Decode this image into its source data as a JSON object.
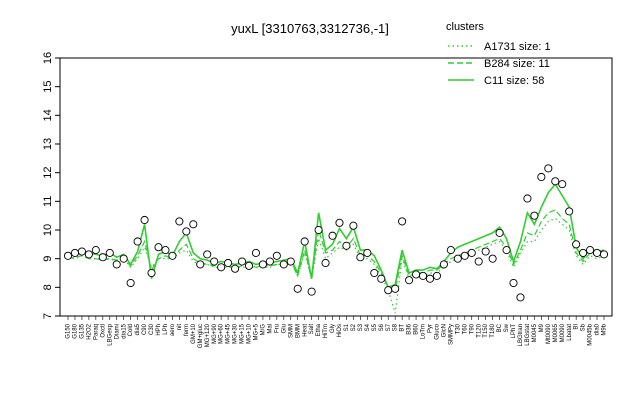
{
  "chart_data": {
    "type": "line",
    "title": "yuxL [3310763,3312736,-1]",
    "xlabel": "",
    "ylabel": "",
    "ylim": [
      7,
      16
    ],
    "yticks": [
      7,
      8,
      9,
      10,
      11,
      12,
      13,
      14,
      15,
      16
    ],
    "grid": false,
    "legend": {
      "title": "clusters",
      "placement": "top-right",
      "entries": [
        {
          "label": "A1731 size: 1",
          "style": "dotted"
        },
        {
          "label": "B284 size: 11",
          "style": "dashed"
        },
        {
          "label": "C11 size: 58",
          "style": "solid"
        }
      ]
    },
    "categories": [
      "G150",
      "G180",
      "G135",
      "H2O2",
      "Paraq",
      "Oxctl",
      "LBGexp",
      "Diami",
      "dia15",
      "Cold",
      "dia5",
      "C90",
      "C30",
      "HPh",
      "LPh",
      "aero",
      "nit",
      "ferm",
      "GM+10",
      "GM+gluc",
      "MG+120",
      "MG+90",
      "MG+60",
      "MG+45",
      "MG+30",
      "MG+15",
      "MG+10",
      "MG+5",
      "M/G",
      "Mal",
      "Fru",
      "Glu",
      "SMM",
      "BMM",
      "Heat",
      "Salt",
      "Etha",
      "HiTm",
      "Gly",
      "HiOs",
      "S1",
      "S2",
      "S3",
      "S4",
      "S5",
      "S6",
      "S7",
      "S8",
      "BT",
      "B36",
      "B60",
      "LoTm",
      "Pyr",
      "Gluco",
      "GlcN",
      "SMMPy",
      "T30",
      "T60",
      "T90",
      "T120",
      "T150",
      "T180",
      "BC",
      "Sw",
      "LPhT",
      "LBGtran",
      "LBGstat",
      "M0045",
      "M9",
      "Mt0090",
      "M0065",
      "M0090",
      "Lbatat",
      "BI",
      "Sb",
      "M0045b",
      "dia0",
      "M9b"
    ],
    "series": [
      {
        "name": "C11 size: 58",
        "style": "solid",
        "values": [
          9.15,
          9.2,
          9.25,
          9.2,
          9.15,
          9.1,
          9.2,
          9.05,
          9.15,
          8.8,
          9.25,
          10.2,
          8.3,
          9.15,
          9.25,
          9.1,
          9.6,
          9.9,
          9.2,
          9.0,
          8.95,
          8.85,
          8.9,
          8.85,
          8.8,
          8.85,
          8.9,
          8.8,
          8.85,
          8.85,
          8.9,
          8.95,
          9.0,
          8.5,
          9.6,
          8.3,
          10.6,
          9.3,
          9.5,
          10.05,
          9.7,
          10.1,
          9.3,
          9.3,
          9.1,
          8.6,
          8.0,
          8.1,
          9.3,
          8.5,
          8.6,
          8.6,
          8.7,
          8.65,
          8.9,
          9.2,
          9.4,
          9.5,
          9.6,
          9.7,
          9.8,
          9.9,
          10.1,
          9.7,
          8.9,
          9.6,
          10.6,
          10.2,
          10.8,
          11.3,
          11.6,
          11.2,
          10.8,
          9.4,
          9.0,
          9.35,
          9.25,
          9.3
        ]
      },
      {
        "name": "B284 size: 11",
        "style": "dashed",
        "values": [
          9.0,
          9.05,
          9.1,
          9.0,
          9.0,
          8.95,
          9.0,
          8.95,
          9.0,
          8.75,
          9.1,
          9.6,
          8.6,
          9.0,
          9.1,
          9.0,
          9.3,
          9.5,
          9.0,
          8.85,
          8.8,
          8.75,
          8.8,
          8.75,
          8.7,
          8.75,
          8.8,
          8.7,
          8.75,
          8.75,
          8.8,
          8.85,
          8.9,
          8.4,
          9.3,
          8.3,
          10.0,
          9.2,
          9.3,
          9.6,
          9.4,
          9.7,
          9.1,
          9.1,
          8.9,
          8.5,
          8.0,
          7.9,
          9.1,
          8.4,
          8.5,
          8.5,
          8.6,
          8.6,
          8.8,
          9.0,
          9.1,
          9.2,
          9.3,
          9.4,
          9.5,
          9.6,
          9.7,
          9.4,
          8.8,
          9.3,
          9.9,
          9.8,
          10.3,
          10.6,
          10.7,
          10.4,
          10.2,
          9.2,
          8.9,
          9.2,
          9.1,
          9.2
        ]
      },
      {
        "name": "A1731 size: 1",
        "style": "dotted",
        "values": [
          9.0,
          9.0,
          9.1,
          9.0,
          9.0,
          9.0,
          9.0,
          8.9,
          9.0,
          8.7,
          9.0,
          9.4,
          8.7,
          9.0,
          9.0,
          9.0,
          9.2,
          9.3,
          8.9,
          8.8,
          8.8,
          8.7,
          8.7,
          8.7,
          8.7,
          8.7,
          8.7,
          8.7,
          8.7,
          8.7,
          8.8,
          8.8,
          8.9,
          8.4,
          9.2,
          8.3,
          9.7,
          9.0,
          9.2,
          9.4,
          9.3,
          9.5,
          9.0,
          9.0,
          8.8,
          8.4,
          7.9,
          7.1,
          9.0,
          8.3,
          8.4,
          8.4,
          8.5,
          8.5,
          8.7,
          8.9,
          9.0,
          9.1,
          9.2,
          9.3,
          9.4,
          9.5,
          9.6,
          9.3,
          8.7,
          9.2,
          9.6,
          9.6,
          10.0,
          10.3,
          10.4,
          10.2,
          10.0,
          9.1,
          8.8,
          9.1,
          9.0,
          9.1
        ]
      }
    ],
    "points": [
      {
        "x": "G150",
        "y": 9.1
      },
      {
        "x": "G180",
        "y": 9.2
      },
      {
        "x": "G135",
        "y": 9.25
      },
      {
        "x": "H2O2",
        "y": 9.15
      },
      {
        "x": "Paraq",
        "y": 9.3
      },
      {
        "x": "Oxctl",
        "y": 9.05
      },
      {
        "x": "LBGexp",
        "y": 9.2
      },
      {
        "x": "Diami",
        "y": 8.8
      },
      {
        "x": "dia15",
        "y": 9.0
      },
      {
        "x": "Cold",
        "y": 8.15
      },
      {
        "x": "dia5",
        "y": 9.6
      },
      {
        "x": "C90",
        "y": 10.35
      },
      {
        "x": "C30",
        "y": 8.5
      },
      {
        "x": "HPh",
        "y": 9.4
      },
      {
        "x": "LPh",
        "y": 9.3
      },
      {
        "x": "aero",
        "y": 9.1
      },
      {
        "x": "nit",
        "y": 10.3
      },
      {
        "x": "ferm",
        "y": 9.95
      },
      {
        "x": "GM+10",
        "y": 10.2
      },
      {
        "x": "GM+gluc",
        "y": 8.8
      },
      {
        "x": "MG+120",
        "y": 9.15
      },
      {
        "x": "MG+90",
        "y": 8.9
      },
      {
        "x": "MG+60",
        "y": 8.7
      },
      {
        "x": "MG+45",
        "y": 8.85
      },
      {
        "x": "MG+30",
        "y": 8.65
      },
      {
        "x": "MG+15",
        "y": 8.9
      },
      {
        "x": "MG+10",
        "y": 8.75
      },
      {
        "x": "MG+5",
        "y": 9.2
      },
      {
        "x": "M/G",
        "y": 8.8
      },
      {
        "x": "Mal",
        "y": 8.9
      },
      {
        "x": "Fru",
        "y": 9.1
      },
      {
        "x": "Glu",
        "y": 8.8
      },
      {
        "x": "SMM",
        "y": 8.9
      },
      {
        "x": "BMM",
        "y": 7.95
      },
      {
        "x": "Heat",
        "y": 9.6
      },
      {
        "x": "Salt",
        "y": 7.85
      },
      {
        "x": "Etha",
        "y": 10.0
      },
      {
        "x": "HiTm",
        "y": 8.85
      },
      {
        "x": "Gly",
        "y": 9.8
      },
      {
        "x": "HiOs",
        "y": 10.25
      },
      {
        "x": "S1",
        "y": 9.45
      },
      {
        "x": "S2",
        "y": 10.15
      },
      {
        "x": "S3",
        "y": 9.05
      },
      {
        "x": "S4",
        "y": 9.2
      },
      {
        "x": "S5",
        "y": 8.5
      },
      {
        "x": "S6",
        "y": 8.3
      },
      {
        "x": "S7",
        "y": 7.9
      },
      {
        "x": "S8",
        "y": 7.95
      },
      {
        "x": "BT",
        "y": 10.3
      },
      {
        "x": "B36",
        "y": 8.25
      },
      {
        "x": "B60",
        "y": 8.45
      },
      {
        "x": "LoTm",
        "y": 8.4
      },
      {
        "x": "Pyr",
        "y": 8.3
      },
      {
        "x": "Gluco",
        "y": 8.4
      },
      {
        "x": "GlcN",
        "y": 8.8
      },
      {
        "x": "SMMPy",
        "y": 9.3
      },
      {
        "x": "T30",
        "y": 9.0
      },
      {
        "x": "T60",
        "y": 9.1
      },
      {
        "x": "T90",
        "y": 9.2
      },
      {
        "x": "T120",
        "y": 8.9
      },
      {
        "x": "T150",
        "y": 9.25
      },
      {
        "x": "T180",
        "y": 9.0
      },
      {
        "x": "BC",
        "y": 9.9
      },
      {
        "x": "Sw",
        "y": 9.3
      },
      {
        "x": "LPhT",
        "y": 8.15
      },
      {
        "x": "LBGtran",
        "y": 7.65
      },
      {
        "x": "LBGstat",
        "y": 11.1
      },
      {
        "x": "M0045",
        "y": 10.5
      },
      {
        "x": "M9",
        "y": 11.85
      },
      {
        "x": "Mt0090",
        "y": 12.15
      },
      {
        "x": "M0065",
        "y": 11.7
      },
      {
        "x": "M0090",
        "y": 11.6
      },
      {
        "x": "Lbatat",
        "y": 10.65
      },
      {
        "x": "BI",
        "y": 9.5
      },
      {
        "x": "Sb",
        "y": 9.2
      },
      {
        "x": "M0045b",
        "y": 9.3
      },
      {
        "x": "dia0",
        "y": 9.2
      },
      {
        "x": "M9b",
        "y": 9.15
      }
    ]
  }
}
